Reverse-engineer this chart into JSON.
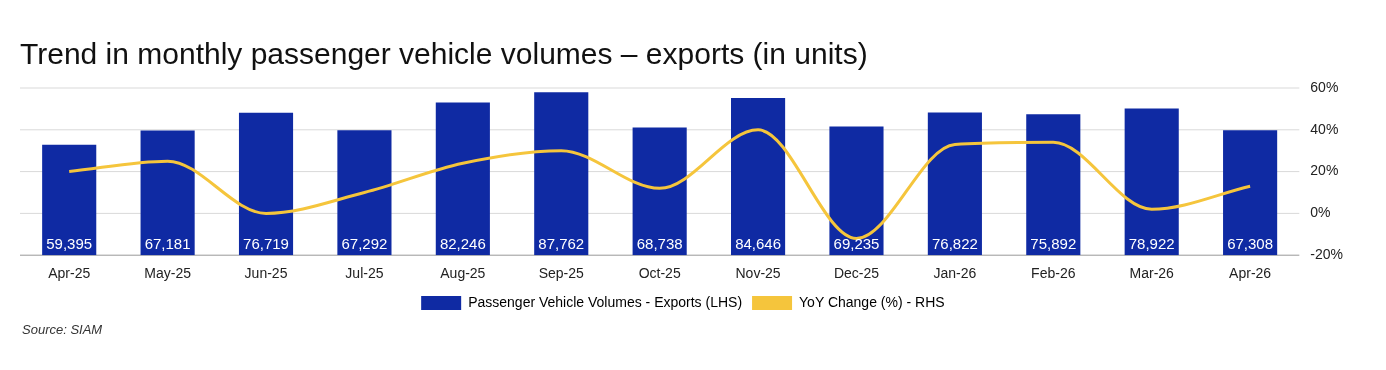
{
  "chart_data": {
    "type": "bar",
    "title": "Trend in monthly passenger vehicle volumes – exports (in units)",
    "categories": [
      "Apr-25",
      "May-25",
      "Jun-25",
      "Jul-25",
      "Aug-25",
      "Sep-25",
      "Oct-25",
      "Nov-25",
      "Dec-25",
      "Jan-26",
      "Feb-26",
      "Mar-26",
      "Apr-26"
    ],
    "series": [
      {
        "name": "Passenger Vehicle Volumes - Exports (LHS)",
        "color": "#0f2aa3",
        "values": [
          59395,
          67181,
          76719,
          67292,
          82246,
          87762,
          68738,
          84646,
          69235,
          76822,
          75892,
          78922,
          67308
        ],
        "value_labels": [
          "59,395",
          "67,181",
          "76,719",
          "67,292",
          "82,246",
          "87,762",
          "68,738",
          "84,646",
          "69,235",
          "76,822",
          "75,892",
          "78,922",
          "67,308"
        ]
      },
      {
        "name": "YoY Change (%) - RHS",
        "type": "line",
        "axis": "y2",
        "color": "#f5c53c",
        "values": [
          20,
          25,
          0,
          10,
          24,
          30,
          12,
          40,
          -12,
          33,
          34,
          2,
          13
        ]
      }
    ],
    "y2lim": [
      -20,
      60
    ],
    "y2ticks": [
      {
        "value": -20,
        "label": "-20%"
      },
      {
        "value": 0,
        "label": "0%"
      },
      {
        "value": 20,
        "label": "20%"
      },
      {
        "value": 40,
        "label": "40%"
      },
      {
        "value": 60,
        "label": "60%"
      }
    ],
    "grid": true,
    "legend": "bottom",
    "marker": "none",
    "annotations": [
      "Source: SIAM"
    ]
  }
}
